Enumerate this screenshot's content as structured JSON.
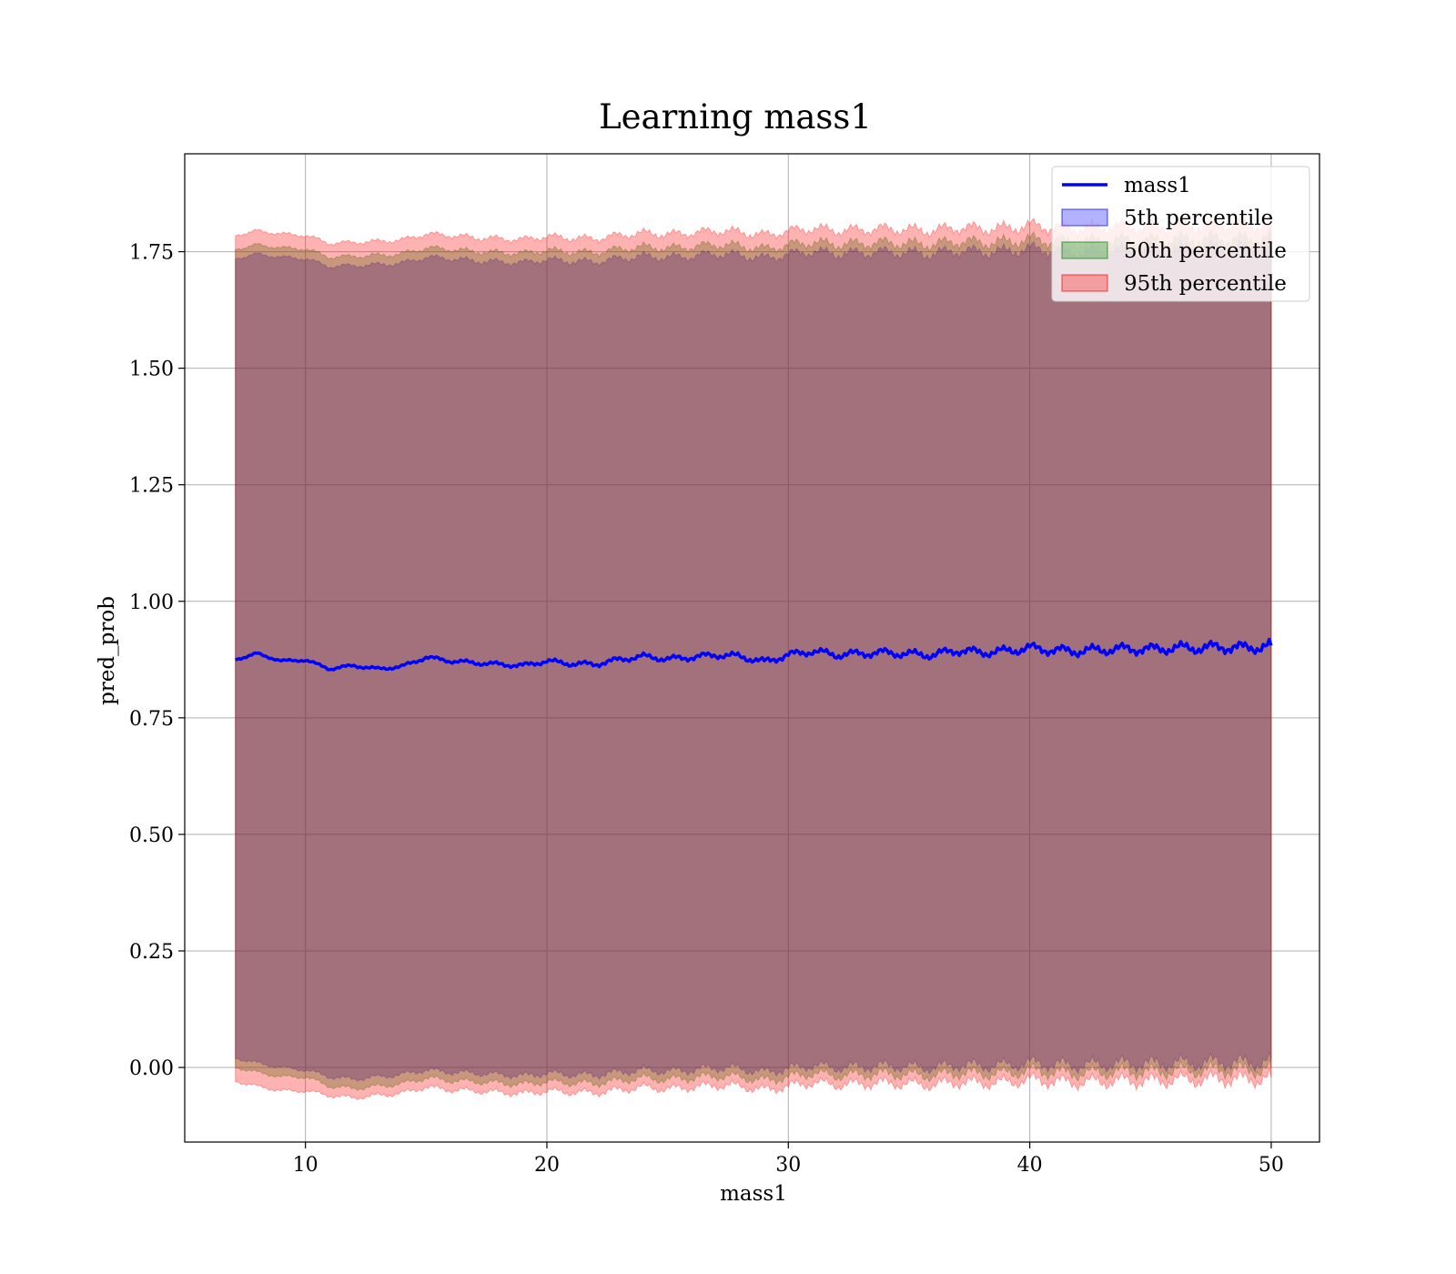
{
  "chart_data": {
    "type": "area",
    "title": "Learning mass1",
    "xlabel": "mass1",
    "ylabel": "pred_prob",
    "xlim": [
      5,
      52
    ],
    "ylim": [
      -0.16,
      1.96
    ],
    "x_range": [
      7.1,
      50.0
    ],
    "x_ticks": [
      10,
      20,
      30,
      40,
      50
    ],
    "x_tick_labels": [
      "10",
      "20",
      "30",
      "40",
      "50"
    ],
    "y_ticks": [
      0.0,
      0.25,
      0.5,
      0.75,
      1.0,
      1.25,
      1.5,
      1.75
    ],
    "y_tick_labels": [
      "0.00",
      "0.25",
      "0.50",
      "0.75",
      "1.00",
      "1.25",
      "1.50",
      "1.75"
    ],
    "grid": true,
    "legend_position": "top-right",
    "series": [
      {
        "name": "mass1",
        "kind": "line",
        "color": "#0000ff",
        "x": [
          7.1,
          8,
          9,
          10,
          11,
          12,
          13,
          14,
          15,
          16,
          17,
          18,
          19,
          20,
          21,
          22,
          23,
          24,
          25,
          26,
          27,
          28,
          29,
          30,
          31,
          32,
          33,
          34,
          35,
          36,
          37,
          38,
          39,
          40,
          41,
          42,
          43,
          44,
          45,
          46,
          47,
          48,
          49,
          50
        ],
        "y": [
          0.875,
          0.888,
          0.872,
          0.874,
          0.855,
          0.862,
          0.855,
          0.86,
          0.88,
          0.872,
          0.868,
          0.865,
          0.862,
          0.872,
          0.866,
          0.865,
          0.875,
          0.882,
          0.876,
          0.88,
          0.885,
          0.882,
          0.87,
          0.885,
          0.893,
          0.885,
          0.888,
          0.89,
          0.887,
          0.885,
          0.895,
          0.89,
          0.893,
          0.9,
          0.895,
          0.893,
          0.896,
          0.898,
          0.897,
          0.9,
          0.9,
          0.902,
          0.9,
          0.905
        ]
      },
      {
        "name": "5th percentile",
        "kind": "band",
        "color": "#0000ff",
        "alpha": 0.3,
        "lower": [
          0.02,
          0.01,
          0.0,
          -0.005,
          -0.02,
          -0.025,
          -0.02,
          -0.015,
          -0.005,
          -0.01,
          -0.012,
          -0.015,
          -0.018,
          -0.012,
          -0.015,
          -0.016,
          -0.01,
          -0.005,
          -0.008,
          -0.005,
          0.0,
          -0.002,
          -0.01,
          -0.002,
          0.005,
          0.0,
          0.002,
          0.004,
          0.002,
          0.0,
          0.006,
          0.004,
          0.005,
          0.01,
          0.007,
          0.005,
          0.007,
          0.009,
          0.008,
          0.01,
          0.01,
          0.012,
          0.01,
          0.014
        ],
        "upper": [
          1.735,
          1.745,
          1.738,
          1.735,
          1.718,
          1.72,
          1.722,
          1.725,
          1.738,
          1.735,
          1.73,
          1.728,
          1.726,
          1.733,
          1.729,
          1.728,
          1.735,
          1.74,
          1.737,
          1.74,
          1.745,
          1.742,
          1.735,
          1.744,
          1.75,
          1.745,
          1.747,
          1.749,
          1.747,
          1.745,
          1.752,
          1.749,
          1.75,
          1.756,
          1.752,
          1.75,
          1.752,
          1.754,
          1.753,
          1.756,
          1.756,
          1.758,
          1.756,
          1.76
        ]
      },
      {
        "name": "50th percentile",
        "kind": "band",
        "color": "#008000",
        "alpha": 0.3,
        "lower": [
          0.0,
          -0.01,
          -0.02,
          -0.02,
          -0.04,
          -0.045,
          -0.04,
          -0.035,
          -0.022,
          -0.028,
          -0.03,
          -0.033,
          -0.036,
          -0.03,
          -0.033,
          -0.034,
          -0.028,
          -0.022,
          -0.026,
          -0.022,
          -0.018,
          -0.02,
          -0.028,
          -0.02,
          -0.012,
          -0.017,
          -0.015,
          -0.013,
          -0.015,
          -0.017,
          -0.011,
          -0.013,
          -0.012,
          -0.006,
          -0.01,
          -0.012,
          -0.01,
          -0.008,
          -0.009,
          -0.006,
          -0.006,
          -0.004,
          -0.006,
          -0.002
        ],
        "upper": [
          1.755,
          1.765,
          1.758,
          1.756,
          1.738,
          1.74,
          1.742,
          1.745,
          1.758,
          1.755,
          1.75,
          1.748,
          1.746,
          1.753,
          1.749,
          1.748,
          1.755,
          1.76,
          1.757,
          1.76,
          1.765,
          1.762,
          1.755,
          1.764,
          1.77,
          1.765,
          1.767,
          1.769,
          1.767,
          1.765,
          1.772,
          1.769,
          1.77,
          1.776,
          1.772,
          1.77,
          1.772,
          1.774,
          1.773,
          1.776,
          1.776,
          1.778,
          1.776,
          1.78
        ]
      },
      {
        "name": "95th percentile",
        "kind": "band",
        "color": "#ff0000",
        "alpha": 0.3,
        "lower": [
          -0.03,
          -0.04,
          -0.05,
          -0.05,
          -0.06,
          -0.065,
          -0.06,
          -0.055,
          -0.042,
          -0.048,
          -0.05,
          -0.053,
          -0.056,
          -0.05,
          -0.053,
          -0.054,
          -0.048,
          -0.042,
          -0.046,
          -0.042,
          -0.038,
          -0.04,
          -0.048,
          -0.04,
          -0.032,
          -0.037,
          -0.035,
          -0.033,
          -0.035,
          -0.037,
          -0.031,
          -0.033,
          -0.032,
          -0.026,
          -0.03,
          -0.032,
          -0.03,
          -0.028,
          -0.029,
          -0.026,
          -0.026,
          -0.024,
          -0.026,
          -0.022
        ],
        "upper": [
          1.785,
          1.795,
          1.788,
          1.785,
          1.768,
          1.77,
          1.772,
          1.775,
          1.788,
          1.785,
          1.78,
          1.778,
          1.776,
          1.783,
          1.779,
          1.778,
          1.785,
          1.79,
          1.787,
          1.79,
          1.795,
          1.792,
          1.785,
          1.794,
          1.8,
          1.795,
          1.797,
          1.799,
          1.797,
          1.795,
          1.802,
          1.799,
          1.8,
          1.806,
          1.802,
          1.8,
          1.802,
          1.804,
          1.803,
          1.806,
          1.806,
          1.808,
          1.806,
          1.81
        ]
      }
    ]
  }
}
